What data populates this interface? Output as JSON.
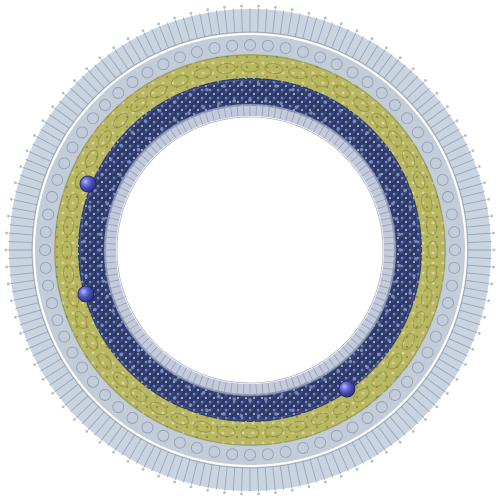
{
  "image": {
    "subject": "circular-ring-mandala",
    "background_color": "#ffffff"
  },
  "palette": {
    "outer_fringe": "#9fb0c6",
    "outer_fringe_dark": "#6f7f99",
    "silver_band": "#b9c3d2",
    "olive_band": "#b4b35a",
    "olive_band_dark": "#8e8a3a",
    "olive_band_light": "#d7d39a",
    "navy_band": "#2d3a6b",
    "navy_band_mid": "#4c5a8f",
    "blue_filigree": "#7f90c4",
    "inner_edge": "#aeb8cf",
    "gem_color": "#4a4fb8",
    "gem_highlight": "#9ea5ff"
  },
  "rings": [
    {
      "name": "outer-fringe-ring",
      "role": "outer-fringe"
    },
    {
      "name": "silver-lace-ring",
      "role": "silver-band"
    },
    {
      "name": "olive-ring",
      "role": "olive-band"
    },
    {
      "name": "navy-filigree-ring",
      "role": "navy-band"
    },
    {
      "name": "inner-lace-ring",
      "role": "inner-edge"
    }
  ],
  "gems": [
    {
      "name": "gem-upper-left"
    },
    {
      "name": "gem-left"
    },
    {
      "name": "gem-lower-right"
    }
  ]
}
